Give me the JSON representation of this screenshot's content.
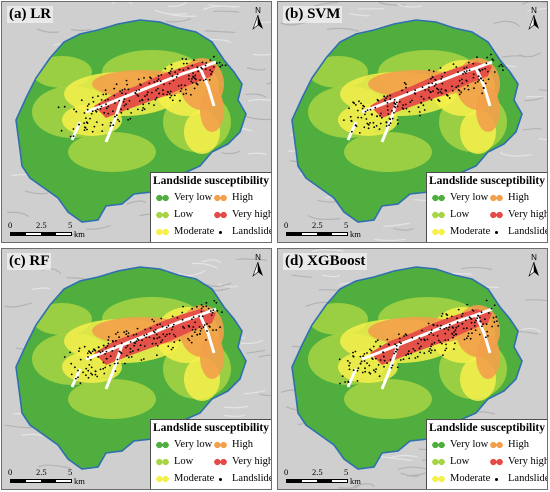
{
  "panels": [
    {
      "label": "(a) LR"
    },
    {
      "label": "(b) SVM"
    },
    {
      "label": "(c) RF"
    },
    {
      "label": "(d) XGBoost"
    }
  ],
  "north_symbol": "N",
  "legend": {
    "title": "Landslide susceptibility",
    "items": [
      {
        "label": "Very low",
        "color": "#4fae3d"
      },
      {
        "label": "High",
        "color": "#f2a04a"
      },
      {
        "label": "Low",
        "color": "#a7d444"
      },
      {
        "label": "Very high",
        "color": "#e44b48"
      },
      {
        "label": "Moderate",
        "color": "#f6f04a"
      },
      {
        "label": "Landslides",
        "color": "#000000"
      }
    ]
  },
  "scale_bar": {
    "ticks": [
      "0",
      "2.5",
      "5"
    ],
    "unit": "km"
  },
  "colors": {
    "boundary": "#2f6fb0",
    "river": "#ffffff",
    "hillshade": "#cfcfcf"
  }
}
